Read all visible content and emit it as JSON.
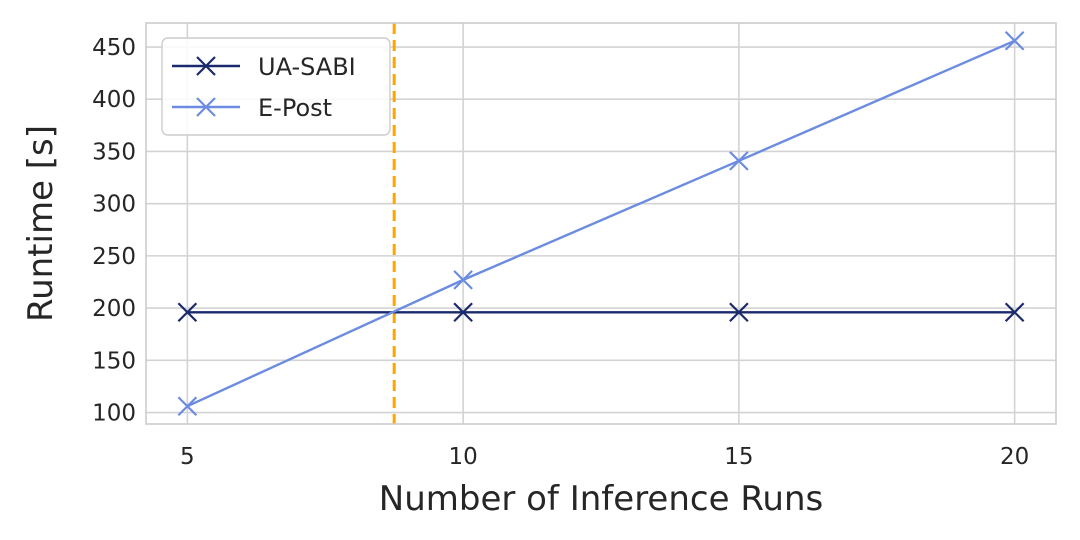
{
  "chart_data": {
    "type": "line",
    "xlabel": "Number of Inference Runs",
    "ylabel": "Runtime [s]",
    "xlim": [
      4.25,
      20.75
    ],
    "ylim": [
      89,
      473
    ],
    "xticks": [
      5,
      10,
      15,
      20
    ],
    "yticks": [
      100,
      150,
      200,
      250,
      300,
      350,
      400,
      450
    ],
    "grid": true,
    "legend_position": "top-left",
    "reference_line": {
      "x": 8.75,
      "style": "dashed",
      "color": "#ffa500"
    },
    "series": [
      {
        "name": "UA-SABI",
        "color": "#1a2a6c",
        "marker": "x",
        "x": [
          5,
          10,
          15,
          20
        ],
        "y": [
          196,
          196,
          196,
          196
        ]
      },
      {
        "name": "E-Post",
        "color": "#6b8ce0",
        "marker": "x",
        "x": [
          5,
          10,
          15,
          20
        ],
        "y": [
          106,
          227,
          341,
          456
        ]
      }
    ]
  }
}
